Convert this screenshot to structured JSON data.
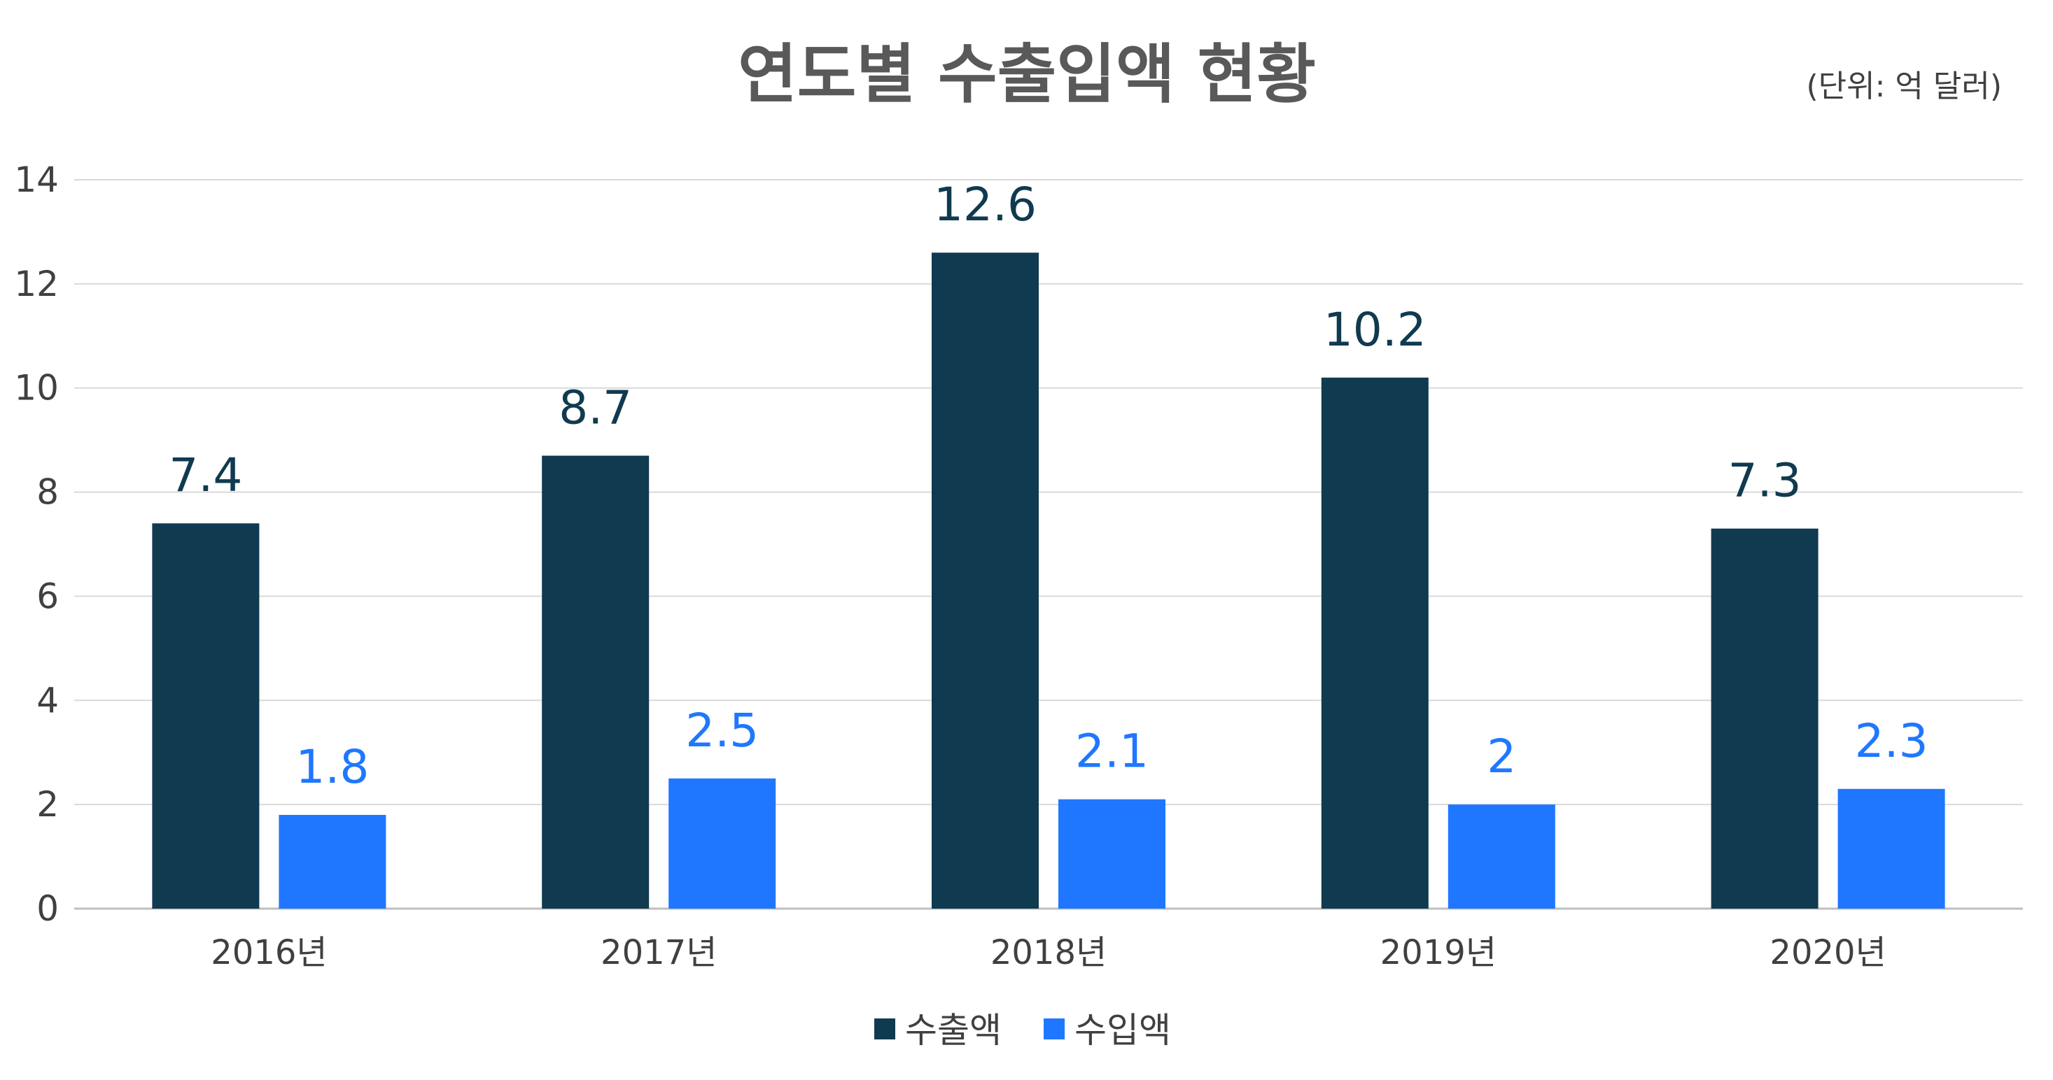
{
  "chart_data": {
    "type": "bar",
    "title": "연도별 수출입액 현황",
    "unit_note": "(단위: 억 달러)",
    "categories": [
      "2016년",
      "2017년",
      "2018년",
      "2019년",
      "2020년"
    ],
    "series": [
      {
        "name": "수출액",
        "values": [
          7.4,
          8.7,
          12.6,
          10.2,
          7.3
        ],
        "color": "#103A4F",
        "labels": [
          "7.4",
          "8.7",
          "12.6",
          "10.2",
          "7.3"
        ]
      },
      {
        "name": "수입액",
        "values": [
          1.8,
          2.5,
          2.1,
          2,
          2.3
        ],
        "color": "#1F77FF",
        "labels": [
          "1.8",
          "2.5",
          "2.1",
          "2",
          "2.3"
        ]
      }
    ],
    "ylim": [
      0,
      14
    ],
    "yticks": [
      "0",
      "2",
      "4",
      "6",
      "8",
      "10",
      "12",
      "14"
    ],
    "grid": true,
    "legend": "bottom-center"
  }
}
